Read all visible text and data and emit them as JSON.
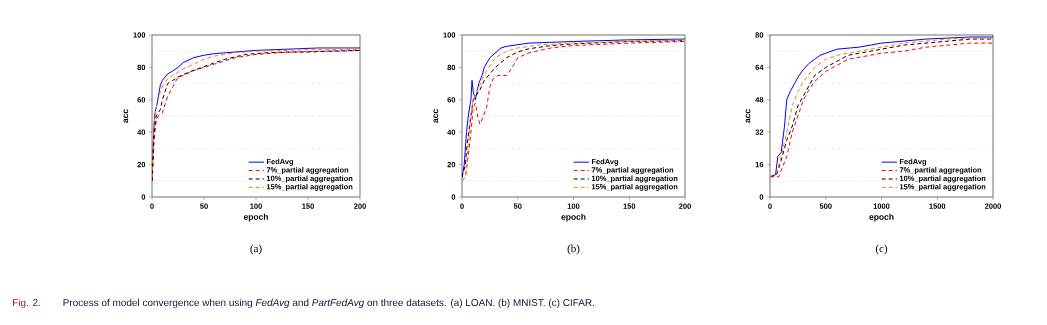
{
  "chart_data": [
    {
      "type": "line",
      "title": "(a)",
      "xlabel": "epoch",
      "ylabel": "acc",
      "xlim": [
        0,
        200
      ],
      "ylim": [
        0,
        100
      ],
      "xticks": [
        0,
        50,
        100,
        150,
        200
      ],
      "yticks": [
        0,
        20,
        40,
        60,
        80,
        100
      ],
      "grid": "y",
      "legend": "bottom right",
      "marker": "none",
      "annotations": [
        "Fig. 2.",
        "Process of model convergence when using *FedAvg* and *PartFedAvg* on three datasets. (a) LOAN. (b) MNIST. (c) CIFAR."
      ],
      "series": [
        {
          "name": "FedAvg",
          "color": "#0000ff",
          "line_style": "solid",
          "x": [
            0,
            1,
            2,
            3,
            5,
            8,
            10,
            15,
            18,
            25,
            30,
            40,
            50,
            60,
            80,
            100,
            120,
            140,
            160,
            180,
            200
          ],
          "values": [
            10,
            30,
            45,
            52,
            58,
            69,
            72,
            76,
            77,
            80,
            83,
            86,
            87.5,
            88.5,
            89.5,
            90.5,
            91,
            91.5,
            92,
            92,
            92
          ]
        },
        {
          "name": "7%_partial aggregation",
          "color": "#ff0000",
          "line_style": "dashed",
          "x": [
            0,
            1,
            2,
            4,
            6,
            10,
            15,
            20,
            25,
            30,
            35,
            40,
            50,
            60,
            80,
            100,
            120,
            140,
            160,
            180,
            200
          ],
          "values": [
            10,
            20,
            35,
            47,
            50,
            52,
            62,
            68,
            74,
            75,
            76.5,
            78,
            80,
            82,
            86,
            88,
            89,
            89.5,
            90,
            90,
            90.5
          ]
        },
        {
          "name": "10%_partial aggregation",
          "color": "#000000",
          "line_style": "dashed",
          "x": [
            0,
            1,
            2,
            4,
            8,
            10,
            15,
            20,
            25,
            35,
            50,
            70,
            90,
            110,
            130,
            150,
            170,
            200
          ],
          "values": [
            10,
            25,
            40,
            50,
            54,
            60,
            70,
            72,
            74,
            77,
            80.5,
            85,
            88,
            89,
            89.5,
            89.5,
            90,
            90.5
          ]
        },
        {
          "name": "15%_partial aggregation",
          "color": "#ff8000",
          "line_style": "dashed",
          "x": [
            0,
            1,
            2,
            4,
            8,
            12,
            20,
            30,
            40,
            50,
            60,
            80,
            100,
            130,
            160,
            200
          ],
          "values": [
            12,
            30,
            45,
            55,
            65,
            71,
            75,
            79,
            82,
            85,
            87,
            89,
            90,
            90.5,
            91,
            91
          ]
        }
      ]
    },
    {
      "type": "line",
      "title": "(b)",
      "xlabel": "epoch",
      "ylabel": "acc",
      "xlim": [
        0,
        200
      ],
      "ylim": [
        0,
        100
      ],
      "xticks": [
        0,
        50,
        100,
        150,
        200
      ],
      "yticks": [
        0,
        20,
        40,
        60,
        80,
        100
      ],
      "grid": "y",
      "legend": "bottom right",
      "marker": "none",
      "series": [
        {
          "name": "FedAvg",
          "color": "#0000ff",
          "line_style": "solid",
          "x": [
            0,
            2,
            4,
            6,
            8,
            9,
            10,
            12,
            15,
            18,
            20,
            25,
            30,
            35,
            40,
            50,
            60,
            80,
            100,
            150,
            200
          ],
          "values": [
            12,
            20,
            40,
            52,
            60,
            72,
            65,
            60,
            70,
            75,
            80,
            86,
            89,
            92,
            93,
            94,
            95,
            95.5,
            96,
            97,
            97.5
          ]
        },
        {
          "name": "7%_partial aggregation",
          "color": "#ff0000",
          "line_style": "dashed",
          "x": [
            0,
            3,
            5,
            8,
            10,
            12,
            14,
            16,
            18,
            22,
            25,
            28,
            32,
            40,
            45,
            50,
            60,
            80,
            100,
            150,
            200
          ],
          "values": [
            10,
            12,
            22,
            40,
            55,
            58,
            50,
            45,
            48,
            55,
            68,
            73,
            75,
            75,
            80,
            86,
            89,
            92,
            93.5,
            95,
            96
          ]
        },
        {
          "name": "10%_partial aggregation",
          "color": "#000000",
          "line_style": "dashed",
          "x": [
            0,
            3,
            5,
            8,
            10,
            12,
            16,
            20,
            25,
            30,
            40,
            50,
            60,
            80,
            100,
            150,
            200
          ],
          "values": [
            12,
            20,
            35,
            50,
            60,
            62,
            66,
            72,
            76,
            80,
            86,
            89.5,
            91.5,
            93.5,
            94.5,
            96,
            96.5
          ]
        },
        {
          "name": "15%_partial aggregation",
          "color": "#ff8000",
          "line_style": "dashed",
          "x": [
            0,
            3,
            5,
            8,
            10,
            14,
            18,
            22,
            30,
            40,
            50,
            70,
            100,
            150,
            200
          ],
          "values": [
            10,
            12,
            28,
            50,
            60,
            66,
            72,
            78,
            86,
            90,
            92,
            94,
            95,
            96,
            97
          ]
        }
      ]
    },
    {
      "type": "line",
      "title": "(c)",
      "xlabel": "epoch",
      "ylabel": "acc",
      "xlim": [
        0,
        2000
      ],
      "ylim": [
        0,
        80
      ],
      "xticks": [
        0,
        500,
        1000,
        1500,
        2000
      ],
      "yticks": [
        0,
        16,
        32,
        48,
        64,
        80
      ],
      "grid": "y",
      "legend": "bottom right",
      "marker": "none",
      "series": [
        {
          "name": "FedAvg",
          "color": "#0000ff",
          "line_style": "solid",
          "x": [
            0,
            50,
            70,
            100,
            130,
            150,
            180,
            220,
            260,
            300,
            350,
            400,
            450,
            500,
            600,
            700,
            800,
            900,
            1000,
            1200,
            1400,
            1600,
            1800,
            2000
          ],
          "values": [
            10,
            11,
            20,
            22,
            35,
            48,
            52,
            56,
            60,
            63,
            66,
            68,
            70,
            71,
            73,
            73.5,
            74,
            75,
            76,
            77,
            78,
            78.5,
            79,
            79
          ]
        },
        {
          "name": "7%_partial aggregation",
          "color": "#ff0000",
          "line_style": "dashed",
          "x": [
            0,
            80,
            100,
            150,
            200,
            250,
            300,
            350,
            400,
            500,
            600,
            700,
            800,
            900,
            1000,
            1200,
            1400,
            1600,
            1800,
            2000
          ],
          "values": [
            10,
            10,
            13,
            20,
            32,
            40,
            48,
            53,
            57,
            62,
            65,
            68,
            69,
            70,
            71,
            72,
            74,
            75,
            76,
            76
          ]
        },
        {
          "name": "10%_partial aggregation",
          "color": "#000000",
          "line_style": "dashed",
          "x": [
            0,
            60,
            100,
            150,
            200,
            250,
            300,
            350,
            400,
            500,
            600,
            700,
            800,
            900,
            1000,
            1200,
            1400,
            1600,
            1800,
            2000
          ],
          "values": [
            10,
            11,
            18,
            28,
            35,
            45,
            50,
            55,
            60,
            64,
            67,
            70,
            71,
            72,
            73,
            75,
            76,
            77,
            78,
            78
          ]
        },
        {
          "name": "15%_partial aggregation",
          "color": "#ff8000",
          "line_style": "dashed",
          "x": [
            0,
            60,
            100,
            150,
            200,
            250,
            300,
            400,
            500,
            600,
            700,
            800,
            1000,
            1200,
            1400,
            1600,
            1800,
            2000
          ],
          "values": [
            10,
            12,
            20,
            32,
            45,
            52,
            57,
            64,
            68,
            70,
            71,
            72,
            74,
            76,
            77,
            78,
            78.5,
            78
          ]
        }
      ]
    }
  ]
}
